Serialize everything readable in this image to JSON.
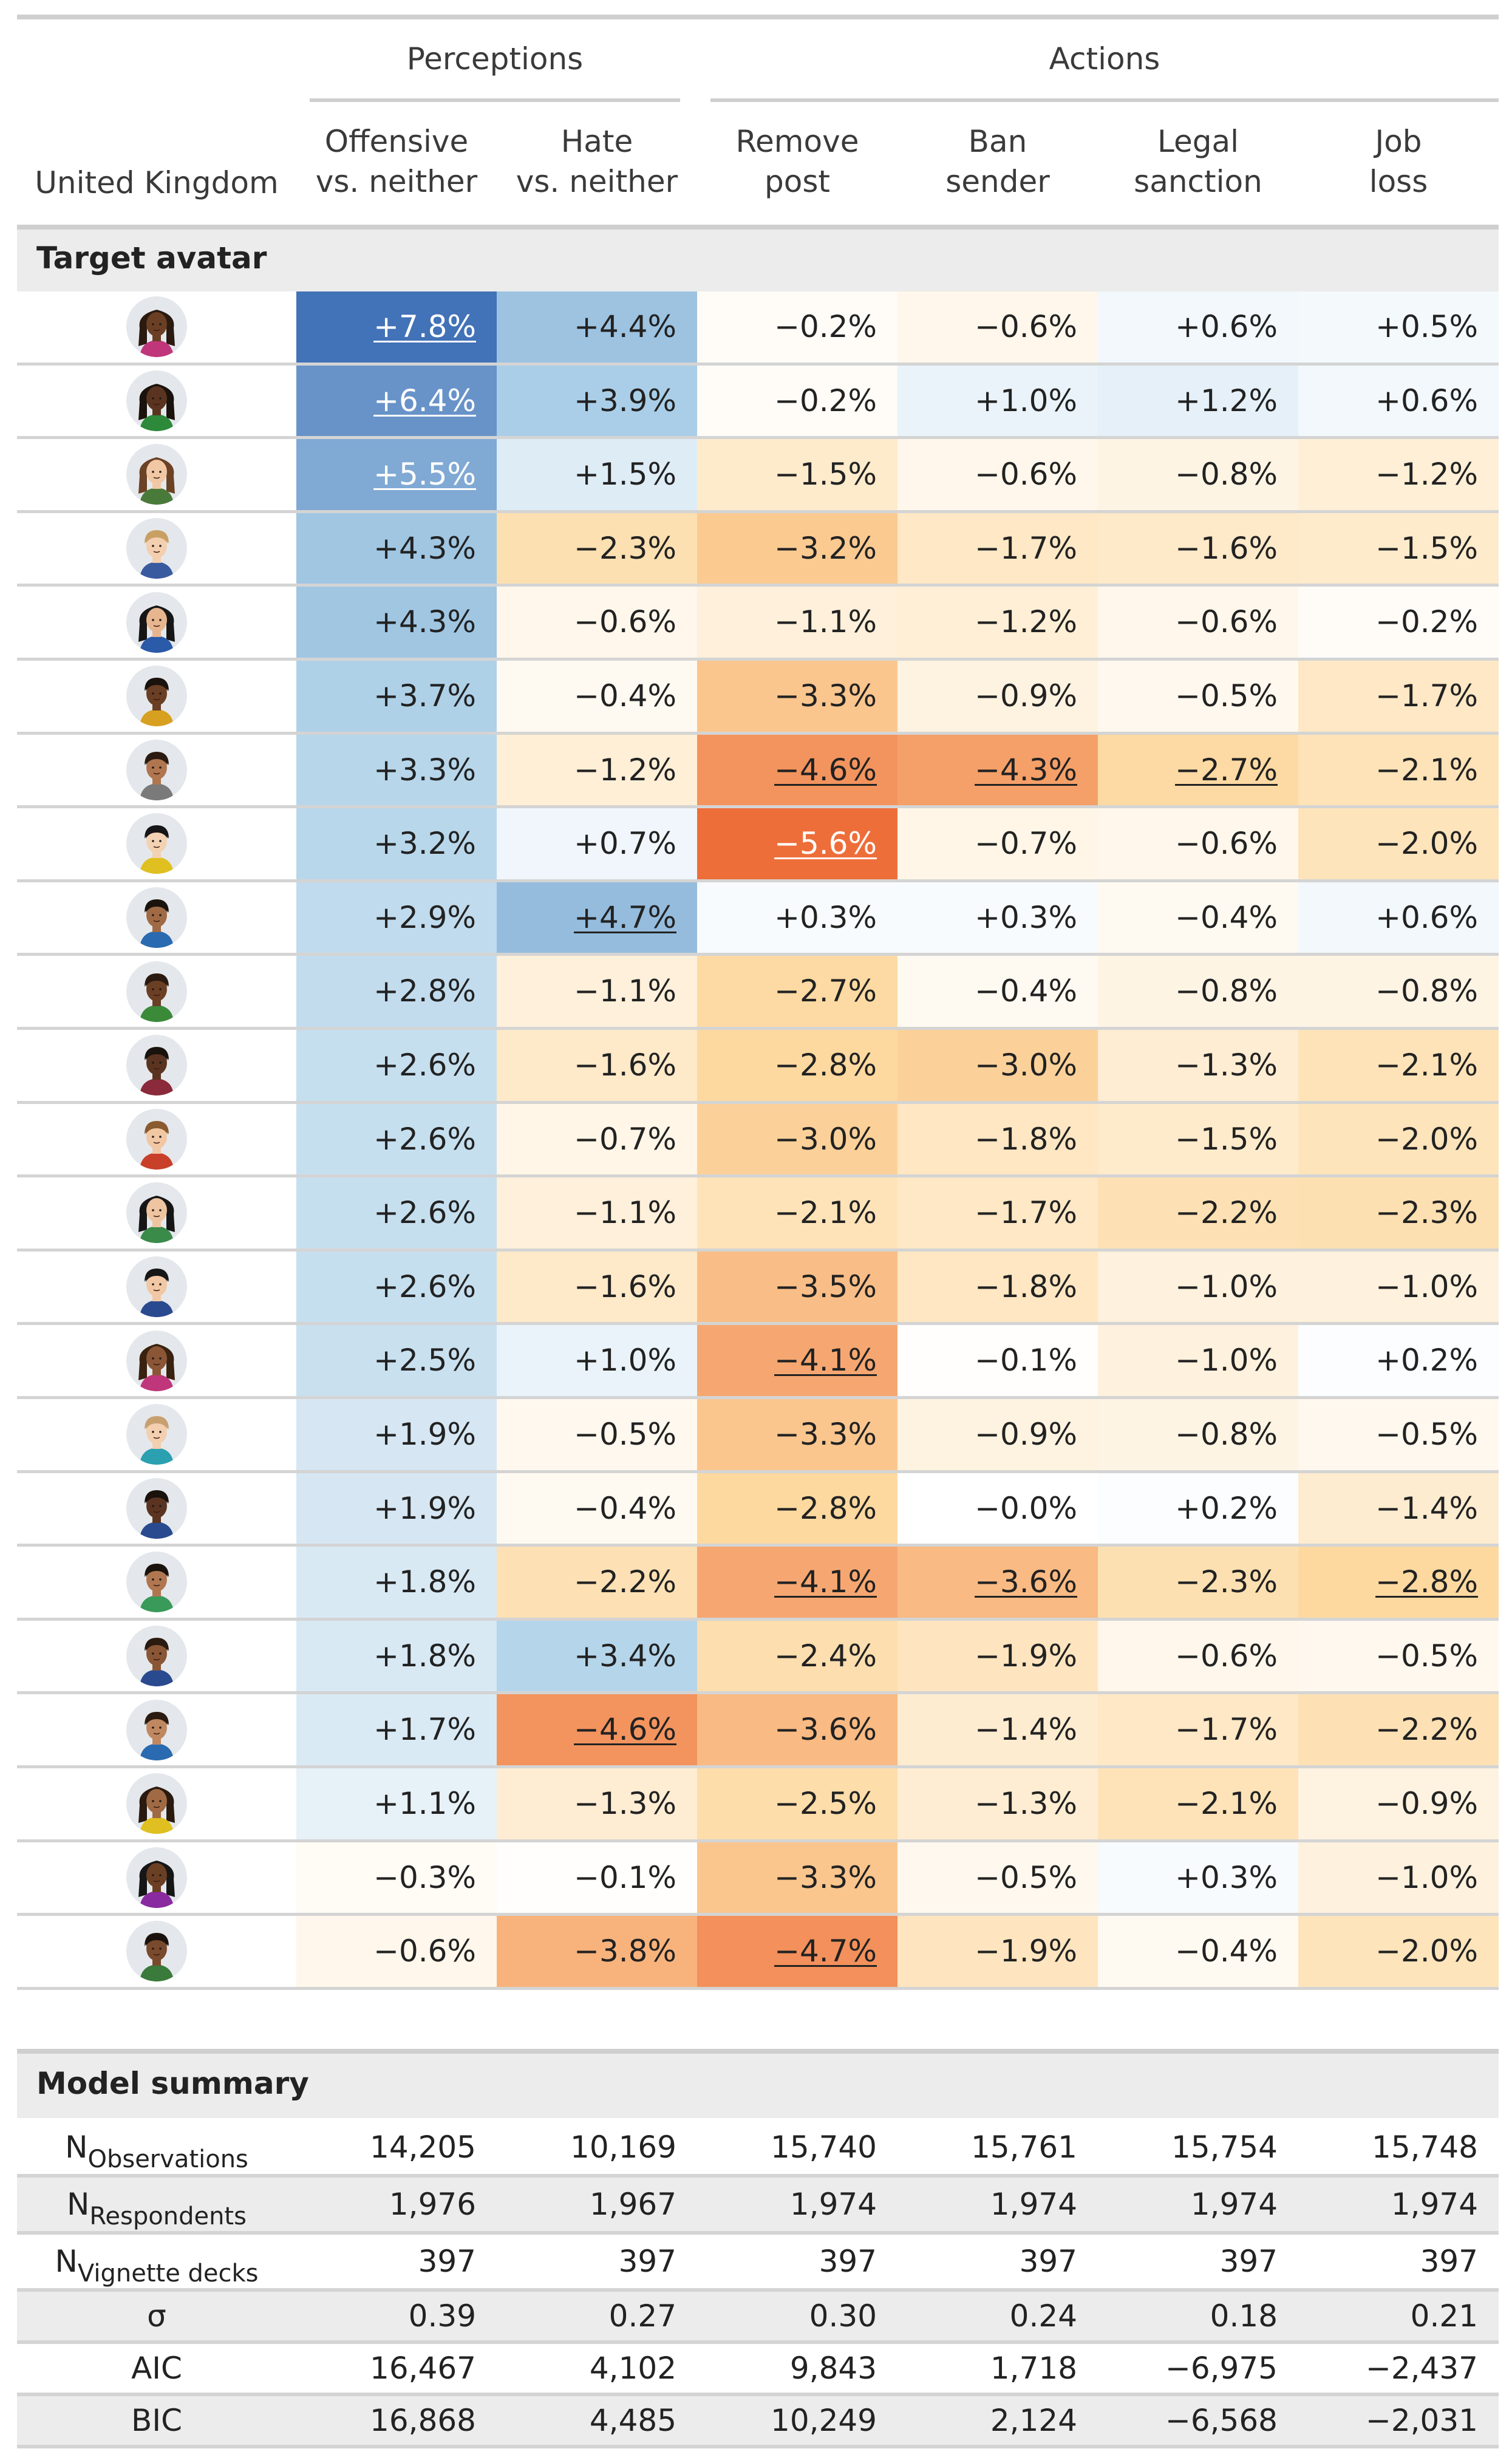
{
  "header": {
    "country": "United Kingdom",
    "groups": [
      {
        "label": "Perceptions",
        "start": 1,
        "end": 2
      },
      {
        "label": "Actions",
        "start": 3,
        "end": 6
      }
    ],
    "columns": [
      {
        "line1": "Offensive",
        "line2": "vs. neither"
      },
      {
        "line1": "Hate",
        "line2": "vs. neither"
      },
      {
        "line1": "Remove",
        "line2": "post"
      },
      {
        "line1": "Ban",
        "line2": "sender"
      },
      {
        "line1": "Legal",
        "line2": "sanction"
      },
      {
        "line1": "Job",
        "line2": "loss"
      }
    ]
  },
  "section_avatar": "Target avatar",
  "section_model": "Model summary",
  "avatars": [
    {
      "icon": "avatar-icon",
      "skin": "#6b3f24",
      "hair": "#2a1a10",
      "shirt": "#c0367a",
      "long": true,
      "cells": [
        {
          "t": "+7.8%",
          "u": true
        },
        {
          "t": "+4.4%",
          "u": false
        },
        {
          "t": "−0.2%",
          "u": false
        },
        {
          "t": "−0.6%",
          "u": false
        },
        {
          "t": "+0.6%",
          "u": false
        },
        {
          "t": "+0.5%",
          "u": false
        }
      ]
    },
    {
      "icon": "avatar-icon",
      "skin": "#5a3420",
      "hair": "#1a120c",
      "shirt": "#2c8a3a",
      "long": true,
      "cells": [
        {
          "t": "+6.4%",
          "u": true
        },
        {
          "t": "+3.9%",
          "u": false
        },
        {
          "t": "−0.2%",
          "u": false
        },
        {
          "t": "+1.0%",
          "u": false
        },
        {
          "t": "+1.2%",
          "u": false
        },
        {
          "t": "+0.6%",
          "u": false
        }
      ]
    },
    {
      "icon": "avatar-icon",
      "skin": "#f1c7a4",
      "hair": "#6b4226",
      "shirt": "#4a7a3a",
      "long": true,
      "cells": [
        {
          "t": "+5.5%",
          "u": true
        },
        {
          "t": "+1.5%",
          "u": false
        },
        {
          "t": "−1.5%",
          "u": false
        },
        {
          "t": "−0.6%",
          "u": false
        },
        {
          "t": "−0.8%",
          "u": false
        },
        {
          "t": "−1.2%",
          "u": false
        }
      ]
    },
    {
      "icon": "avatar-icon",
      "skin": "#f3cfb0",
      "hair": "#c9a064",
      "shirt": "#3a5aa0",
      "long": false,
      "cells": [
        {
          "t": "+4.3%",
          "u": false
        },
        {
          "t": "−2.3%",
          "u": false
        },
        {
          "t": "−3.2%",
          "u": false
        },
        {
          "t": "−1.7%",
          "u": false
        },
        {
          "t": "−1.6%",
          "u": false
        },
        {
          "t": "−1.5%",
          "u": false
        }
      ]
    },
    {
      "icon": "avatar-icon",
      "skin": "#e7b58e",
      "hair": "#161616",
      "shirt": "#2a5aa8",
      "long": true,
      "cells": [
        {
          "t": "+4.3%",
          "u": false
        },
        {
          "t": "−0.6%",
          "u": false
        },
        {
          "t": "−1.1%",
          "u": false
        },
        {
          "t": "−1.2%",
          "u": false
        },
        {
          "t": "−0.6%",
          "u": false
        },
        {
          "t": "−0.2%",
          "u": false
        }
      ]
    },
    {
      "icon": "avatar-icon",
      "skin": "#6b3f24",
      "hair": "#1a120c",
      "shirt": "#d8a020",
      "long": false,
      "cells": [
        {
          "t": "+3.7%",
          "u": false
        },
        {
          "t": "−0.4%",
          "u": false
        },
        {
          "t": "−3.3%",
          "u": false
        },
        {
          "t": "−0.9%",
          "u": false
        },
        {
          "t": "−0.5%",
          "u": false
        },
        {
          "t": "−1.7%",
          "u": false
        }
      ]
    },
    {
      "icon": "avatar-icon",
      "skin": "#b07650",
      "hair": "#2a1a10",
      "shirt": "#7a7a7a",
      "long": false,
      "cells": [
        {
          "t": "+3.3%",
          "u": false
        },
        {
          "t": "−1.2%",
          "u": false
        },
        {
          "t": "−4.6%",
          "u": true
        },
        {
          "t": "−4.3%",
          "u": true
        },
        {
          "t": "−2.7%",
          "u": true
        },
        {
          "t": "−2.1%",
          "u": false
        }
      ]
    },
    {
      "icon": "avatar-icon",
      "skin": "#f3d2b3",
      "hair": "#161616",
      "shirt": "#e0c020",
      "long": false,
      "cells": [
        {
          "t": "+3.2%",
          "u": false
        },
        {
          "t": "+0.7%",
          "u": false
        },
        {
          "t": "−5.6%",
          "u": true
        },
        {
          "t": "−0.7%",
          "u": false
        },
        {
          "t": "−0.6%",
          "u": false
        },
        {
          "t": "−2.0%",
          "u": false
        }
      ]
    },
    {
      "icon": "avatar-icon",
      "skin": "#a06a44",
      "hair": "#1a120c",
      "shirt": "#2a6ab0",
      "long": false,
      "cells": [
        {
          "t": "+2.9%",
          "u": false
        },
        {
          "t": "+4.7%",
          "u": true
        },
        {
          "t": "+0.3%",
          "u": false
        },
        {
          "t": "+0.3%",
          "u": false
        },
        {
          "t": "−0.4%",
          "u": false
        },
        {
          "t": "+0.6%",
          "u": false
        }
      ]
    },
    {
      "icon": "avatar-icon",
      "skin": "#6b3f24",
      "hair": "#2a1a10",
      "shirt": "#3a8a3a",
      "long": false,
      "cells": [
        {
          "t": "+2.8%",
          "u": false
        },
        {
          "t": "−1.1%",
          "u": false
        },
        {
          "t": "−2.7%",
          "u": false
        },
        {
          "t": "−0.4%",
          "u": false
        },
        {
          "t": "−0.8%",
          "u": false
        },
        {
          "t": "−0.8%",
          "u": false
        }
      ]
    },
    {
      "icon": "avatar-icon",
      "skin": "#5a3420",
      "hair": "#1a120c",
      "shirt": "#8a2a3a",
      "long": false,
      "cells": [
        {
          "t": "+2.6%",
          "u": false
        },
        {
          "t": "−1.6%",
          "u": false
        },
        {
          "t": "−2.8%",
          "u": false
        },
        {
          "t": "−3.0%",
          "u": false
        },
        {
          "t": "−1.3%",
          "u": false
        },
        {
          "t": "−2.1%",
          "u": false
        }
      ]
    },
    {
      "icon": "avatar-icon",
      "skin": "#f1c7a4",
      "hair": "#8a5a30",
      "shirt": "#c8402a",
      "long": false,
      "cells": [
        {
          "t": "+2.6%",
          "u": false
        },
        {
          "t": "−0.7%",
          "u": false
        },
        {
          "t": "−3.0%",
          "u": false
        },
        {
          "t": "−1.8%",
          "u": false
        },
        {
          "t": "−1.5%",
          "u": false
        },
        {
          "t": "−2.0%",
          "u": false
        }
      ]
    },
    {
      "icon": "avatar-icon",
      "skin": "#efc4a0",
      "hair": "#161616",
      "shirt": "#3a8a4a",
      "long": true,
      "cells": [
        {
          "t": "+2.6%",
          "u": false
        },
        {
          "t": "−1.1%",
          "u": false
        },
        {
          "t": "−2.1%",
          "u": false
        },
        {
          "t": "−1.7%",
          "u": false
        },
        {
          "t": "−2.2%",
          "u": false
        },
        {
          "t": "−2.3%",
          "u": false
        }
      ]
    },
    {
      "icon": "avatar-icon",
      "skin": "#f1c7a4",
      "hair": "#161616",
      "shirt": "#2a4a90",
      "long": false,
      "cells": [
        {
          "t": "+2.6%",
          "u": false
        },
        {
          "t": "−1.6%",
          "u": false
        },
        {
          "t": "−3.5%",
          "u": false
        },
        {
          "t": "−1.8%",
          "u": false
        },
        {
          "t": "−1.0%",
          "u": false
        },
        {
          "t": "−1.0%",
          "u": false
        }
      ]
    },
    {
      "icon": "avatar-icon",
      "skin": "#8a5636",
      "hair": "#3a2210",
      "shirt": "#c0367a",
      "long": true,
      "cells": [
        {
          "t": "+2.5%",
          "u": false
        },
        {
          "t": "+1.0%",
          "u": false
        },
        {
          "t": "−4.1%",
          "u": true
        },
        {
          "t": "−0.1%",
          "u": false
        },
        {
          "t": "−1.0%",
          "u": false
        },
        {
          "t": "+0.2%",
          "u": false
        }
      ]
    },
    {
      "icon": "avatar-icon",
      "skin": "#f3cfb0",
      "hair": "#c8a070",
      "shirt": "#2aa0b0",
      "long": false,
      "cells": [
        {
          "t": "+1.9%",
          "u": false
        },
        {
          "t": "−0.5%",
          "u": false
        },
        {
          "t": "−3.3%",
          "u": false
        },
        {
          "t": "−0.9%",
          "u": false
        },
        {
          "t": "−0.8%",
          "u": false
        },
        {
          "t": "−0.5%",
          "u": false
        }
      ]
    },
    {
      "icon": "avatar-icon",
      "skin": "#5a3420",
      "hair": "#1a120c",
      "shirt": "#2a4a90",
      "long": false,
      "cells": [
        {
          "t": "+1.9%",
          "u": false
        },
        {
          "t": "−0.4%",
          "u": false
        },
        {
          "t": "−2.8%",
          "u": false
        },
        {
          "t": "−0.0%",
          "u": false
        },
        {
          "t": "+0.2%",
          "u": false
        },
        {
          "t": "−1.4%",
          "u": false
        }
      ]
    },
    {
      "icon": "avatar-icon",
      "skin": "#b07650",
      "hair": "#1a120c",
      "shirt": "#3a9a5a",
      "long": false,
      "cells": [
        {
          "t": "+1.8%",
          "u": false
        },
        {
          "t": "−2.2%",
          "u": false
        },
        {
          "t": "−4.1%",
          "u": true
        },
        {
          "t": "−3.6%",
          "u": true
        },
        {
          "t": "−2.3%",
          "u": false
        },
        {
          "t": "−2.8%",
          "u": true
        }
      ]
    },
    {
      "icon": "avatar-icon",
      "skin": "#8a5636",
      "hair": "#2a1a10",
      "shirt": "#2a4a90",
      "long": false,
      "cells": [
        {
          "t": "+1.8%",
          "u": false
        },
        {
          "t": "+3.4%",
          "u": false
        },
        {
          "t": "−2.4%",
          "u": false
        },
        {
          "t": "−1.9%",
          "u": false
        },
        {
          "t": "−0.6%",
          "u": false
        },
        {
          "t": "−0.5%",
          "u": false
        }
      ]
    },
    {
      "icon": "avatar-icon",
      "skin": "#c08860",
      "hair": "#2a1a10",
      "shirt": "#2a6ab0",
      "long": false,
      "cells": [
        {
          "t": "+1.7%",
          "u": false
        },
        {
          "t": "−4.6%",
          "u": true
        },
        {
          "t": "−3.6%",
          "u": false
        },
        {
          "t": "−1.4%",
          "u": false
        },
        {
          "t": "−1.7%",
          "u": false
        },
        {
          "t": "−2.2%",
          "u": false
        }
      ]
    },
    {
      "icon": "avatar-icon",
      "skin": "#a06a44",
      "hair": "#2a1a10",
      "shirt": "#e0c020",
      "long": true,
      "cells": [
        {
          "t": "+1.1%",
          "u": false
        },
        {
          "t": "−1.3%",
          "u": false
        },
        {
          "t": "−2.5%",
          "u": false
        },
        {
          "t": "−1.3%",
          "u": false
        },
        {
          "t": "−2.1%",
          "u": false
        },
        {
          "t": "−0.9%",
          "u": false
        }
      ]
    },
    {
      "icon": "avatar-icon",
      "skin": "#6b3f24",
      "hair": "#161616",
      "shirt": "#8a2aa0",
      "long": true,
      "cells": [
        {
          "t": "−0.3%",
          "u": false
        },
        {
          "t": "−0.1%",
          "u": false
        },
        {
          "t": "−3.3%",
          "u": false
        },
        {
          "t": "−0.5%",
          "u": false
        },
        {
          "t": "+0.3%",
          "u": false
        },
        {
          "t": "−1.0%",
          "u": false
        }
      ]
    },
    {
      "icon": "avatar-icon",
      "skin": "#7a4a2c",
      "hair": "#1a120c",
      "shirt": "#3a7a3a",
      "long": false,
      "cells": [
        {
          "t": "−0.6%",
          "u": false
        },
        {
          "t": "−3.8%",
          "u": false
        },
        {
          "t": "−4.7%",
          "u": true
        },
        {
          "t": "−1.9%",
          "u": false
        },
        {
          "t": "−0.4%",
          "u": false
        },
        {
          "t": "−2.0%",
          "u": false
        }
      ]
    }
  ],
  "summary": [
    {
      "label": "N",
      "sub": "Observations",
      "values": [
        "14,205",
        "10,169",
        "15,740",
        "15,761",
        "15,754",
        "15,748"
      ]
    },
    {
      "label": "N",
      "sub": "Respondents",
      "values": [
        "1,976",
        "1,967",
        "1,974",
        "1,974",
        "1,974",
        "1,974"
      ]
    },
    {
      "label": "N",
      "sub": "Vignette decks",
      "values": [
        "397",
        "397",
        "397",
        "397",
        "397",
        "397"
      ]
    },
    {
      "label": "σ",
      "sub": "",
      "values": [
        "0.39",
        "0.27",
        "0.30",
        "0.24",
        "0.18",
        "0.21"
      ]
    },
    {
      "label": "AIC",
      "sub": "",
      "values": [
        "16,467",
        "4,102",
        "9,843",
        "1,718",
        "−6,975",
        "−2,437"
      ]
    },
    {
      "label": "BIC",
      "sub": "",
      "values": [
        "16,868",
        "4,485",
        "10,249",
        "2,124",
        "−6,568",
        "−2,031"
      ]
    }
  ],
  "colors": {
    "positive": "#4a78b8",
    "negative": "#ec6a36",
    "neutral": "#ffffff",
    "rule": "#cfcfcf",
    "section_bg": "#ececec"
  }
}
